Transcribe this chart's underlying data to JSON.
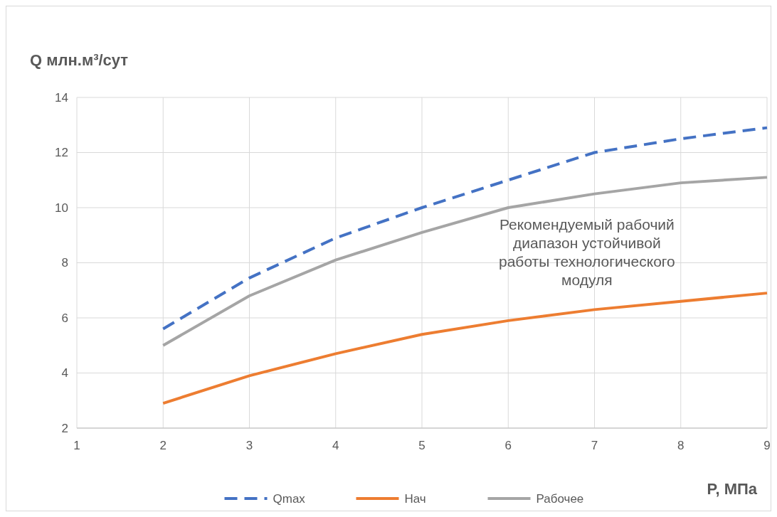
{
  "chart_data": {
    "type": "line",
    "ylabel": "Q млн.м³/сут",
    "xlabel": "P, МПа",
    "x": [
      2,
      3,
      4,
      5,
      6,
      7,
      8,
      9
    ],
    "xlim": [
      1,
      9
    ],
    "xticks": [
      1,
      2,
      3,
      4,
      5,
      6,
      7,
      8,
      9
    ],
    "ylim": [
      2,
      14
    ],
    "yticks": [
      2,
      4,
      6,
      8,
      10,
      12,
      14
    ],
    "grid": true,
    "legend": "bottom",
    "annotations": [
      "Рекомендуемый рабочий диапазон устойчивой работы технологического модуля"
    ],
    "series": [
      {
        "name": "Qmax",
        "color": "#4472c4",
        "line_style": "dashed",
        "values": [
          5.6,
          7.45,
          8.9,
          10.0,
          11.0,
          12.0,
          12.5,
          12.9
        ]
      },
      {
        "name": "Нач",
        "color": "#ed7d31",
        "line_style": "solid",
        "values": [
          2.9,
          3.9,
          4.7,
          5.4,
          5.9,
          6.3,
          6.6,
          6.9
        ]
      },
      {
        "name": "Рабочее",
        "color": "#a5a5a5",
        "line_style": "solid",
        "values": [
          5.0,
          6.8,
          8.1,
          9.1,
          10.0,
          10.5,
          10.9,
          11.1
        ]
      }
    ]
  }
}
